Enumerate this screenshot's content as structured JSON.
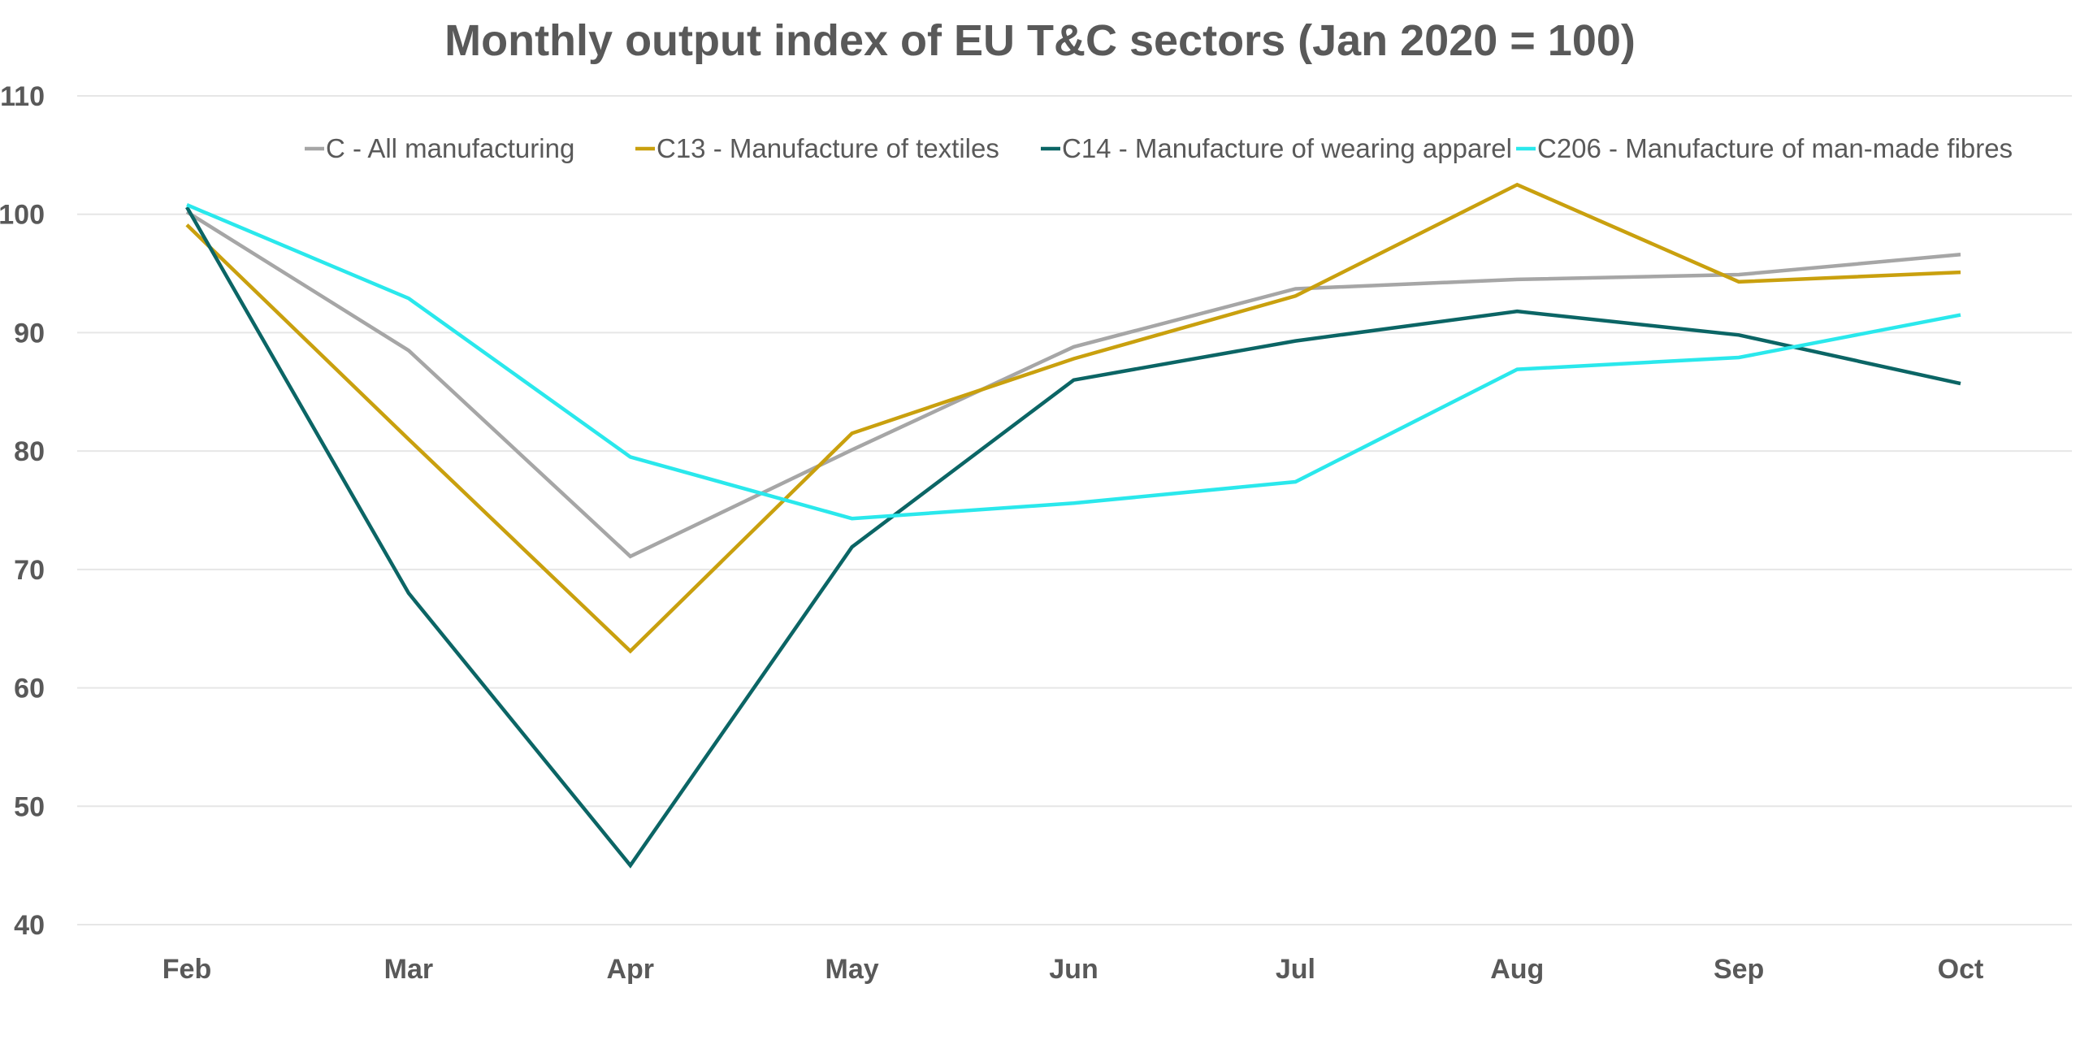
{
  "chart_data": {
    "type": "line",
    "title": "Monthly output index of EU T&C sectors (Jan 2020 = 100)",
    "xlabel": "",
    "ylabel": "",
    "categories": [
      "Feb",
      "Mar",
      "Apr",
      "May",
      "Jun",
      "Jul",
      "Aug",
      "Sep",
      "Oct"
    ],
    "ylim": [
      40,
      110
    ],
    "yticks": [
      40,
      50,
      60,
      70,
      80,
      90,
      100,
      110
    ],
    "grid": true,
    "legend_position": "top",
    "series": [
      {
        "name": "C - All manufacturing",
        "color": "#a6a6a6",
        "values": [
          100.2,
          88.5,
          71.1,
          80.1,
          88.8,
          93.7,
          94.5,
          94.9,
          96.6
        ]
      },
      {
        "name": "C13 - Manufacture of textiles",
        "color": "#c9a00e",
        "values": [
          99.1,
          81.0,
          63.1,
          81.5,
          87.8,
          93.1,
          102.5,
          94.3,
          95.1
        ]
      },
      {
        "name": "C14 - Manufacture of wearing apparel",
        "color": "#0b6565",
        "values": [
          100.6,
          68.0,
          45.0,
          71.9,
          86.0,
          89.3,
          91.8,
          89.8,
          85.7
        ]
      },
      {
        "name": "C206 - Manufacture of man-made fibres",
        "color": "#2ae8ec",
        "values": [
          100.8,
          92.9,
          79.5,
          74.3,
          75.6,
          77.4,
          86.9,
          87.9,
          91.5
        ]
      }
    ]
  }
}
